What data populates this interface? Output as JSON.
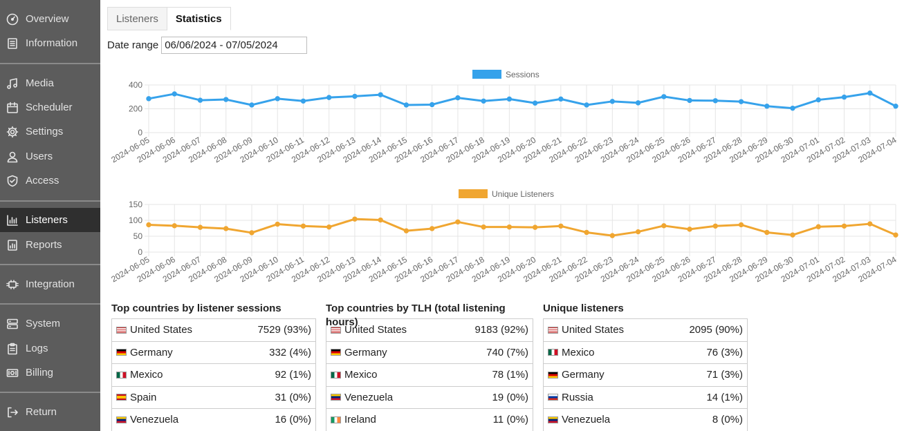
{
  "sidebar": {
    "items": [
      {
        "label": "Overview",
        "icon": "gauge-icon"
      },
      {
        "label": "Information",
        "icon": "document-icon"
      },
      {
        "label": "Media",
        "icon": "music-icon"
      },
      {
        "label": "Scheduler",
        "icon": "calendar-icon"
      },
      {
        "label": "Settings",
        "icon": "gear-icon"
      },
      {
        "label": "Users",
        "icon": "user-icon"
      },
      {
        "label": "Access",
        "icon": "shield-icon"
      },
      {
        "label": "Listeners",
        "icon": "bar-chart-icon",
        "active": true
      },
      {
        "label": "Reports",
        "icon": "report-icon"
      },
      {
        "label": "Integration",
        "icon": "plug-icon"
      },
      {
        "label": "System",
        "icon": "server-icon"
      },
      {
        "label": "Logs",
        "icon": "clipboard-icon"
      },
      {
        "label": "Billing",
        "icon": "money-icon"
      },
      {
        "label": "Return",
        "icon": "exit-icon"
      }
    ]
  },
  "tabs": [
    "Listeners",
    "Statistics"
  ],
  "date_range": {
    "label": "Date range",
    "value": "06/06/2024 - 07/05/2024"
  },
  "colors": {
    "sessions": "#36a2eb",
    "unique": "#f0a631",
    "sidebar": "#5c5c5c",
    "sidebar_active": "#2f2f2f"
  },
  "chart_data": [
    {
      "type": "line",
      "series": [
        {
          "name": "Sessions",
          "values": [
            285,
            325,
            272,
            278,
            232,
            285,
            265,
            295,
            305,
            318,
            232,
            235,
            292,
            265,
            282,
            248,
            282,
            232,
            262,
            250,
            302,
            270,
            268,
            260,
            222,
            205,
            275,
            298,
            332,
            222
          ]
        }
      ],
      "x": [
        "2024-06-05",
        "2024-06-06",
        "2024-06-07",
        "2024-06-08",
        "2024-06-09",
        "2024-06-10",
        "2024-06-11",
        "2024-06-12",
        "2024-06-13",
        "2024-06-14",
        "2024-06-15",
        "2024-06-16",
        "2024-06-17",
        "2024-06-18",
        "2024-06-19",
        "2024-06-20",
        "2024-06-21",
        "2024-06-22",
        "2024-06-23",
        "2024-06-24",
        "2024-06-25",
        "2024-06-26",
        "2024-06-27",
        "2024-06-28",
        "2024-06-29",
        "2024-06-30",
        "2024-07-01",
        "2024-07-02",
        "2024-07-03",
        "2024-07-04"
      ],
      "yticks": [
        "400",
        "200",
        "0"
      ],
      "ylim": [
        0,
        400
      ],
      "legend": "top-center",
      "grid": true
    },
    {
      "type": "line",
      "series": [
        {
          "name": "Unique Listeners",
          "values": [
            86,
            83,
            78,
            74,
            61,
            88,
            82,
            79,
            104,
            101,
            67,
            74,
            95,
            79,
            79,
            78,
            82,
            62,
            52,
            64,
            83,
            72,
            82,
            86,
            62,
            54,
            80,
            82,
            89,
            54
          ]
        }
      ],
      "x": [
        "2024-06-05",
        "2024-06-06",
        "2024-06-07",
        "2024-06-08",
        "2024-06-09",
        "2024-06-10",
        "2024-06-11",
        "2024-06-12",
        "2024-06-13",
        "2024-06-14",
        "2024-06-15",
        "2024-06-16",
        "2024-06-17",
        "2024-06-18",
        "2024-06-19",
        "2024-06-20",
        "2024-06-21",
        "2024-06-22",
        "2024-06-23",
        "2024-06-24",
        "2024-06-25",
        "2024-06-26",
        "2024-06-27",
        "2024-06-28",
        "2024-06-29",
        "2024-06-30",
        "2024-07-01",
        "2024-07-02",
        "2024-07-03",
        "2024-07-04"
      ],
      "yticks": [
        "150",
        "100",
        "50",
        "0"
      ],
      "ylim": [
        0,
        150
      ],
      "legend": "top-center",
      "grid": true
    }
  ],
  "tables": [
    {
      "title": "Top countries by listener sessions",
      "rows": [
        {
          "country": "United States",
          "value": "7529 (93%)",
          "flag": "us"
        },
        {
          "country": "Germany",
          "value": "332 (4%)",
          "flag": "de"
        },
        {
          "country": "Mexico",
          "value": "92 (1%)",
          "flag": "mx"
        },
        {
          "country": "Spain",
          "value": "31 (0%)",
          "flag": "es"
        },
        {
          "country": "Venezuela",
          "value": "16 (0%)",
          "flag": "ve"
        }
      ]
    },
    {
      "title": "Top countries by TLH (total listening hours)",
      "rows": [
        {
          "country": "United States",
          "value": "9183 (92%)",
          "flag": "us"
        },
        {
          "country": "Germany",
          "value": "740 (7%)",
          "flag": "de"
        },
        {
          "country": "Mexico",
          "value": "78 (1%)",
          "flag": "mx"
        },
        {
          "country": "Venezuela",
          "value": "19 (0%)",
          "flag": "ve"
        },
        {
          "country": "Ireland",
          "value": "11 (0%)",
          "flag": "ie"
        }
      ]
    },
    {
      "title": "Unique listeners",
      "rows": [
        {
          "country": "United States",
          "value": "2095 (90%)",
          "flag": "us"
        },
        {
          "country": "Mexico",
          "value": "76 (3%)",
          "flag": "mx"
        },
        {
          "country": "Germany",
          "value": "71 (3%)",
          "flag": "de"
        },
        {
          "country": "Russia",
          "value": "14 (1%)",
          "flag": "ru"
        },
        {
          "country": "Venezuela",
          "value": "8 (0%)",
          "flag": "ve"
        }
      ]
    }
  ]
}
